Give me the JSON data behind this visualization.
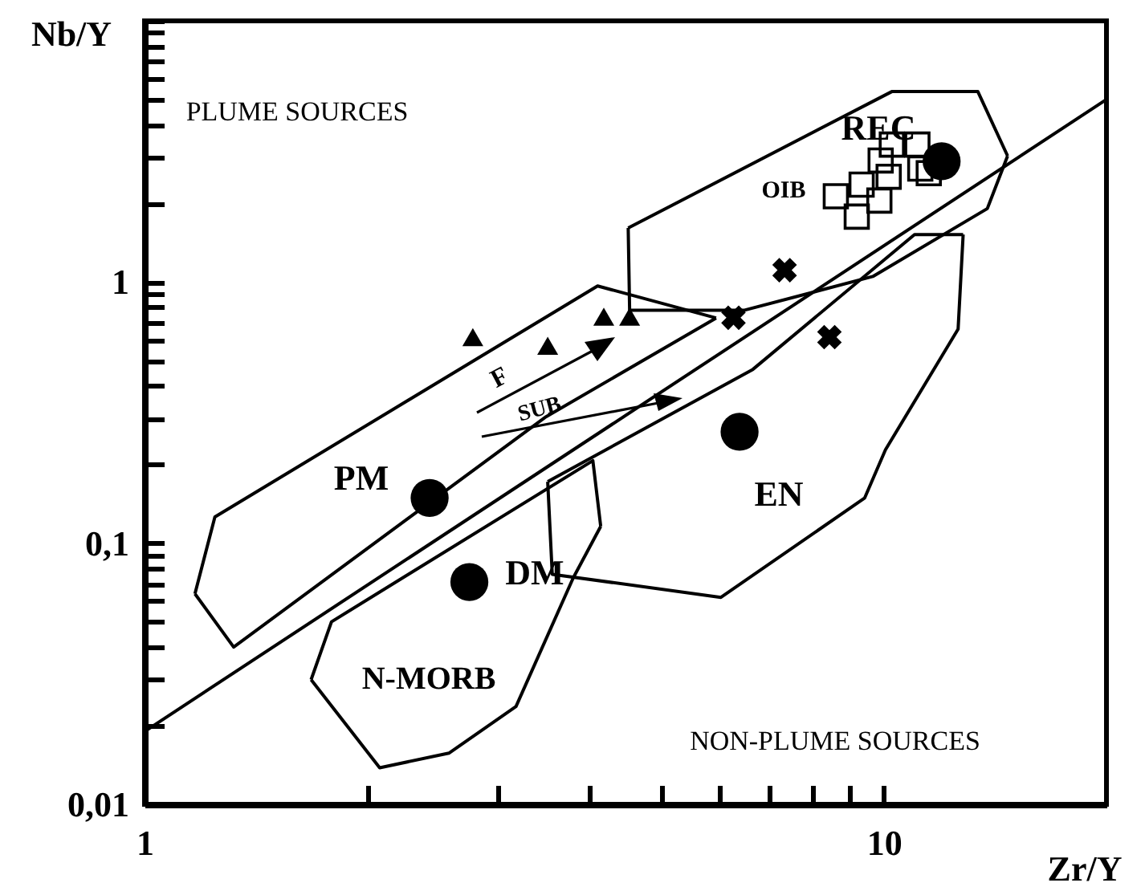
{
  "chart_data": {
    "type": "scatter",
    "xlabel": "Zr/Y",
    "ylabel": "Nb/Y",
    "log": "xy",
    "grid": false,
    "xlim": [
      1,
      20
    ],
    "ylim": [
      0.01,
      10
    ],
    "xticks": [
      1,
      {
        "value": 2,
        "label": null
      },
      {
        "value": 3,
        "label": null
      },
      {
        "value": 4,
        "label": null
      },
      {
        "value": 5,
        "label": null
      },
      {
        "value": 6,
        "label": null
      },
      {
        "value": 7,
        "label": null
      },
      {
        "value": 8,
        "label": null
      },
      {
        "value": 9,
        "label": null
      },
      10
    ],
    "yticks": [
      {
        "value": 0.01,
        "label": "0,01"
      },
      {
        "value": 0.02,
        "label": null
      },
      {
        "value": 0.03,
        "label": null
      },
      {
        "value": 0.04,
        "label": null
      },
      {
        "value": 0.05,
        "label": null
      },
      {
        "value": 0.06,
        "label": null
      },
      {
        "value": 0.07,
        "label": null
      },
      {
        "value": 0.08,
        "label": null
      },
      {
        "value": 0.09,
        "label": null
      },
      {
        "value": 0.1,
        "label": "0,1"
      },
      {
        "value": 0.2,
        "label": null
      },
      {
        "value": 0.3,
        "label": null
      },
      {
        "value": 0.4,
        "label": null
      },
      {
        "value": 0.5,
        "label": null
      },
      {
        "value": 0.6,
        "label": null
      },
      {
        "value": 0.7,
        "label": null
      },
      {
        "value": 0.8,
        "label": null
      },
      {
        "value": 0.9,
        "label": null
      },
      1,
      {
        "value": 2,
        "label": null
      },
      {
        "value": 3,
        "label": null
      },
      {
        "value": 4,
        "label": null
      },
      {
        "value": 5,
        "label": null
      },
      {
        "value": 6,
        "label": null
      },
      {
        "value": 7,
        "label": null
      },
      {
        "value": 8,
        "label": null
      },
      {
        "value": 9,
        "label": null
      },
      {
        "value": 10,
        "label": null
      }
    ],
    "series": [
      {
        "type": "line",
        "color": "#000000",
        "marker": "none",
        "x": [
          4.51,
          10.25,
          13.4,
          14.7
        ],
        "values": [
          1.61,
          5.36,
          5.36,
          3.04
        ]
      },
      {
        "type": "line",
        "color": "#000000",
        "marker": "none",
        "x": [
          4.51,
          4.53,
          6.48,
          9.66,
          13.8,
          14.7
        ],
        "values": [
          1.61,
          0.78,
          0.78,
          1.05,
          1.91,
          3.04
        ]
      },
      {
        "type": "line",
        "color": "#000000",
        "marker": "none",
        "x": [
          1.17,
          1.245,
          4.1,
          5.93
        ],
        "values": [
          0.064,
          0.126,
          0.966,
          0.728
        ]
      },
      {
        "type": "line",
        "color": "#000000",
        "marker": "none",
        "x": [
          1.17,
          1.32,
          3.48,
          5.93
        ],
        "values": [
          0.064,
          0.04,
          0.303,
          0.728
        ]
      },
      {
        "type": "line",
        "color": "#000000",
        "marker": "none",
        "x": [
          3.51,
          6.65,
          11.0,
          12.8
        ],
        "values": [
          0.172,
          0.463,
          1.52,
          1.52
        ]
      },
      {
        "type": "line",
        "color": "#000000",
        "marker": "none",
        "x": [
          3.51,
          3.56,
          6.02,
          9.42,
          10.05,
          12.6,
          12.8
        ],
        "values": [
          0.172,
          0.076,
          0.062,
          0.149,
          0.228,
          0.66,
          1.52
        ]
      },
      {
        "type": "line",
        "color": "#000000",
        "marker": "none",
        "x": [
          1.68,
          1.79,
          4.04,
          4.14
        ],
        "values": [
          0.03,
          0.05,
          0.207,
          0.116
        ]
      },
      {
        "type": "line",
        "color": "#000000",
        "marker": "none",
        "x": [
          1.68,
          2.08,
          2.58,
          3.18,
          3.8,
          4.14
        ],
        "values": [
          0.03,
          0.0138,
          0.0157,
          0.0237,
          0.0736,
          0.116
        ]
      },
      {
        "type": "line",
        "color": "#000000",
        "marker": "none",
        "x": [
          1,
          20
        ],
        "values": [
          0.019,
          5.0
        ]
      },
      {
        "color": "#000000",
        "marker": "circle",
        "x": [
          2.43,
          2.75,
          6.38,
          11.97
        ],
        "values": [
          0.149,
          0.071,
          0.267,
          2.9
        ]
      },
      {
        "color": "#000000",
        "marker": "triangle",
        "x": [
          2.78,
          3.51,
          4.18,
          4.53
        ],
        "values": [
          0.615,
          0.57,
          0.737,
          0.737
        ]
      },
      {
        "color": "#000000",
        "marker": "cross",
        "x": [
          6.26,
          7.34,
          8.44
        ],
        "values": [
          0.73,
          1.11,
          0.615
        ]
      },
      {
        "color": "#000000",
        "marker": "square",
        "x": [
          8.61,
          9.19,
          9.33,
          9.9,
          9.86,
          10.15,
          10.25,
          11.1,
          11.2,
          11.5
        ],
        "values": [
          2.13,
          1.78,
          2.36,
          2.92,
          2.05,
          2.53,
          3.36,
          3.36,
          2.72,
          2.61
        ]
      }
    ],
    "annotations": [
      "PLUME SOURCES",
      "NON-PLUME SOURCES",
      "PM",
      "DM",
      "EN",
      "REC",
      "OIB",
      "N-MORB",
      "F",
      "SUB"
    ]
  }
}
